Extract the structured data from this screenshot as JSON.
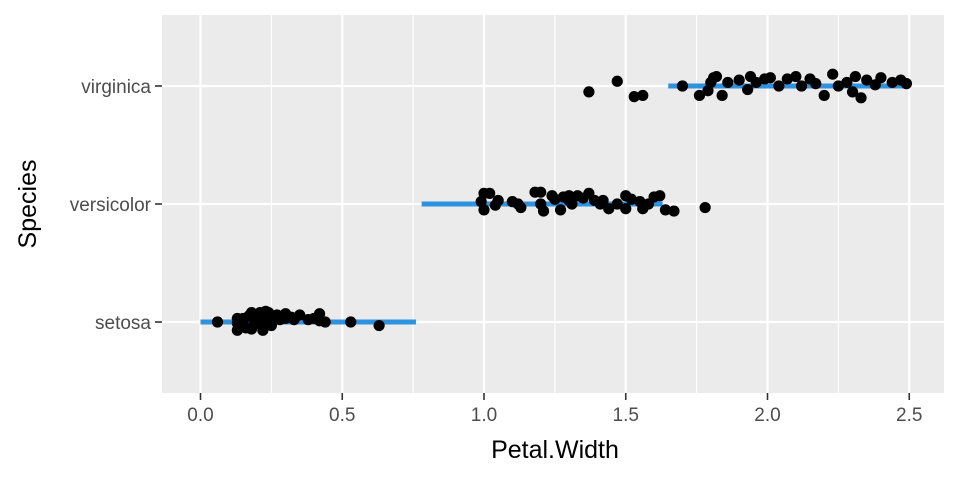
{
  "chart_data": {
    "type": "scatter",
    "title": "",
    "xlabel": "Petal.Width",
    "ylabel": "Species",
    "xlim": [
      -0.13,
      2.6
    ],
    "x_ticks": [
      0.0,
      0.5,
      1.0,
      1.5,
      2.0,
      2.5
    ],
    "x_tick_labels": [
      "0.0",
      "0.5",
      "1.0",
      "1.5",
      "2.0",
      "2.5"
    ],
    "categories": [
      "setosa",
      "versicolor",
      "virginica"
    ],
    "grid": true,
    "legend": "none",
    "colors": {
      "panel": "#ebebeb",
      "grid": "#ffffff",
      "points": "#000000",
      "range_bar": "#2b93e0"
    },
    "range_bars": [
      {
        "category": "setosa",
        "x_start": 0.0,
        "x_end": 0.76
      },
      {
        "category": "versicolor",
        "x_start": 0.78,
        "x_end": 1.63
      },
      {
        "category": "virginica",
        "x_start": 1.65,
        "x_end": 2.5
      }
    ],
    "series": [
      {
        "category": "setosa",
        "points": [
          [
            0.06,
            0.0
          ],
          [
            0.13,
            -0.01
          ],
          [
            0.13,
            0.03
          ],
          [
            0.14,
            0.02
          ],
          [
            0.15,
            0.03
          ],
          [
            0.13,
            -0.07
          ],
          [
            0.16,
            -0.05
          ],
          [
            0.15,
            0.0
          ],
          [
            0.17,
            0.05
          ],
          [
            0.18,
            0.08
          ],
          [
            0.19,
            -0.02
          ],
          [
            0.18,
            -0.06
          ],
          [
            0.21,
            0.08
          ],
          [
            0.2,
            0.04
          ],
          [
            0.19,
            0.06
          ],
          [
            0.21,
            -0.01
          ],
          [
            0.22,
            -0.07
          ],
          [
            0.22,
            -0.02
          ],
          [
            0.23,
            0.09
          ],
          [
            0.24,
            0.08
          ],
          [
            0.24,
            0.04
          ],
          [
            0.23,
            0.02
          ],
          [
            0.25,
            0.0
          ],
          [
            0.25,
            -0.03
          ],
          [
            0.27,
            0.06
          ],
          [
            0.28,
            0.02
          ],
          [
            0.3,
            0.03
          ],
          [
            0.3,
            0.07
          ],
          [
            0.32,
            0.04
          ],
          [
            0.33,
            0.02
          ],
          [
            0.35,
            0.06
          ],
          [
            0.38,
            0.02
          ],
          [
            0.4,
            0.03
          ],
          [
            0.42,
            0.07
          ],
          [
            0.42,
            0.01
          ],
          [
            0.44,
            0.0
          ],
          [
            0.53,
            0.0
          ],
          [
            0.63,
            -0.03
          ]
        ]
      },
      {
        "category": "versicolor",
        "points": [
          [
            1.0,
            0.09
          ],
          [
            1.0,
            -0.05
          ],
          [
            0.99,
            0.02
          ],
          [
            1.02,
            0.09
          ],
          [
            1.05,
            0.03
          ],
          [
            1.04,
            -0.01
          ],
          [
            1.1,
            0.02
          ],
          [
            1.12,
            0.0
          ],
          [
            1.13,
            -0.03
          ],
          [
            1.18,
            0.1
          ],
          [
            1.2,
            0.1
          ],
          [
            1.2,
            0.0
          ],
          [
            1.21,
            -0.06
          ],
          [
            1.24,
            0.07
          ],
          [
            1.25,
            0.04
          ],
          [
            1.27,
            -0.05
          ],
          [
            1.28,
            0.06
          ],
          [
            1.3,
            0.07
          ],
          [
            1.3,
            0.03
          ],
          [
            1.31,
            0.0
          ],
          [
            1.33,
            0.07
          ],
          [
            1.35,
            0.05
          ],
          [
            1.37,
            0.09
          ],
          [
            1.39,
            0.03
          ],
          [
            1.41,
            0.0
          ],
          [
            1.42,
            0.03
          ],
          [
            1.44,
            -0.04
          ],
          [
            1.47,
            0.0
          ],
          [
            1.5,
            -0.04
          ],
          [
            1.5,
            0.07
          ],
          [
            1.52,
            0.04
          ],
          [
            1.55,
            0.02
          ],
          [
            1.56,
            -0.04
          ],
          [
            1.58,
            0.0
          ],
          [
            1.6,
            0.06
          ],
          [
            1.62,
            0.07
          ],
          [
            1.64,
            -0.05
          ],
          [
            1.67,
            -0.06
          ],
          [
            1.78,
            -0.03
          ]
        ]
      },
      {
        "category": "virginica",
        "points": [
          [
            1.37,
            -0.05
          ],
          [
            1.47,
            0.04
          ],
          [
            1.53,
            -0.09
          ],
          [
            1.56,
            -0.08
          ],
          [
            1.7,
            0.0
          ],
          [
            1.76,
            -0.08
          ],
          [
            1.79,
            -0.04
          ],
          [
            1.8,
            0.03
          ],
          [
            1.81,
            0.07
          ],
          [
            1.82,
            0.08
          ],
          [
            1.84,
            -0.08
          ],
          [
            1.86,
            0.03
          ],
          [
            1.9,
            0.05
          ],
          [
            1.93,
            -0.03
          ],
          [
            1.94,
            0.08
          ],
          [
            1.96,
            0.03
          ],
          [
            1.99,
            0.06
          ],
          [
            2.01,
            0.07
          ],
          [
            2.04,
            0.0
          ],
          [
            2.07,
            0.06
          ],
          [
            2.1,
            0.08
          ],
          [
            2.12,
            0.0
          ],
          [
            2.15,
            0.06
          ],
          [
            2.17,
            0.02
          ],
          [
            2.2,
            -0.08
          ],
          [
            2.23,
            0.1
          ],
          [
            2.25,
            0.0
          ],
          [
            2.28,
            0.03
          ],
          [
            2.3,
            -0.05
          ],
          [
            2.31,
            0.08
          ],
          [
            2.33,
            -0.1
          ],
          [
            2.35,
            0.05
          ],
          [
            2.38,
            0.01
          ],
          [
            2.4,
            0.07
          ],
          [
            2.44,
            0.03
          ],
          [
            2.47,
            0.05
          ],
          [
            2.49,
            0.02
          ]
        ]
      }
    ]
  }
}
